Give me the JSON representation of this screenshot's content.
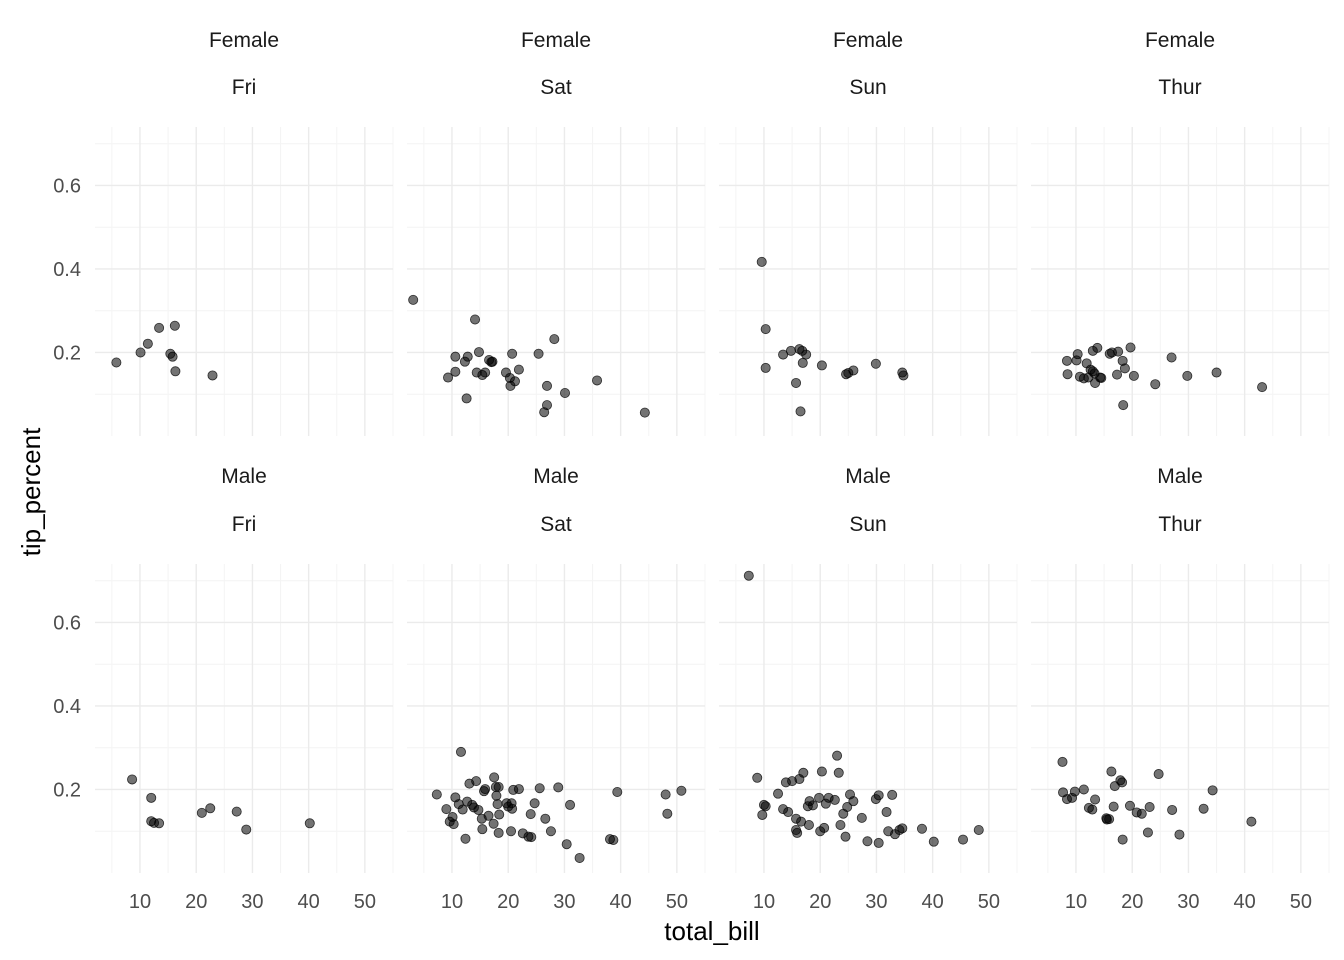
{
  "chart_data": {
    "type": "scatter",
    "xlabel": "total_bill",
    "ylabel": "tip_percent",
    "xlim": [
      2,
      55
    ],
    "ylim": [
      0.0,
      0.74
    ],
    "x_ticks": [
      10,
      20,
      30,
      40,
      50
    ],
    "y_ticks": [
      0.2,
      0.4,
      0.6
    ],
    "x_tick_labels": [
      "10",
      "20",
      "30",
      "40",
      "50"
    ],
    "y_tick_labels": [
      "0.2",
      "0.4",
      "0.6"
    ],
    "grid": true,
    "facets": [
      {
        "sex": "Female",
        "day": "Fri",
        "points": [
          [
            5.8,
            0.176
          ],
          [
            10.1,
            0.2
          ],
          [
            11.4,
            0.221
          ],
          [
            13.4,
            0.259
          ],
          [
            15.4,
            0.197
          ],
          [
            15.8,
            0.19
          ],
          [
            16.3,
            0.155
          ],
          [
            16.2,
            0.264
          ],
          [
            22.9,
            0.145
          ]
        ]
      },
      {
        "sex": "Female",
        "day": "Sat",
        "points": [
          [
            3.1,
            0.326
          ],
          [
            9.3,
            0.14
          ],
          [
            10.6,
            0.19
          ],
          [
            10.6,
            0.154
          ],
          [
            12.3,
            0.178
          ],
          [
            12.6,
            0.09
          ],
          [
            12.8,
            0.19
          ],
          [
            14.1,
            0.279
          ],
          [
            14.4,
            0.152
          ],
          [
            14.8,
            0.201
          ],
          [
            15.4,
            0.146
          ],
          [
            15.9,
            0.152
          ],
          [
            16.6,
            0.182
          ],
          [
            17.0,
            0.177
          ],
          [
            17.2,
            0.178
          ],
          [
            19.6,
            0.152
          ],
          [
            20.3,
            0.139
          ],
          [
            20.4,
            0.12
          ],
          [
            20.7,
            0.197
          ],
          [
            21.2,
            0.131
          ],
          [
            21.9,
            0.159
          ],
          [
            25.4,
            0.197
          ],
          [
            26.4,
            0.057
          ],
          [
            26.9,
            0.12
          ],
          [
            26.9,
            0.074
          ],
          [
            28.2,
            0.232
          ],
          [
            30.1,
            0.103
          ],
          [
            35.8,
            0.133
          ],
          [
            44.3,
            0.056
          ]
        ]
      },
      {
        "sex": "Female",
        "day": "Sun",
        "points": [
          [
            9.6,
            0.417
          ],
          [
            10.3,
            0.163
          ],
          [
            10.3,
            0.256
          ],
          [
            13.4,
            0.195
          ],
          [
            14.8,
            0.204
          ],
          [
            15.7,
            0.127
          ],
          [
            16.3,
            0.208
          ],
          [
            16.5,
            0.059
          ],
          [
            16.8,
            0.204
          ],
          [
            16.9,
            0.175
          ],
          [
            17.5,
            0.195
          ],
          [
            20.3,
            0.169
          ],
          [
            24.6,
            0.148
          ],
          [
            25.0,
            0.151
          ],
          [
            25.9,
            0.157
          ],
          [
            29.9,
            0.173
          ],
          [
            34.6,
            0.152
          ],
          [
            34.8,
            0.145
          ]
        ]
      },
      {
        "sex": "Female",
        "day": "Thur",
        "points": [
          [
            8.4,
            0.18
          ],
          [
            8.5,
            0.148
          ],
          [
            10.1,
            0.181
          ],
          [
            10.3,
            0.196
          ],
          [
            10.7,
            0.142
          ],
          [
            11.4,
            0.138
          ],
          [
            11.9,
            0.174
          ],
          [
            12.2,
            0.14
          ],
          [
            12.6,
            0.159
          ],
          [
            13.0,
            0.155
          ],
          [
            13.0,
            0.204
          ],
          [
            13.3,
            0.15
          ],
          [
            13.4,
            0.127
          ],
          [
            13.8,
            0.211
          ],
          [
            14.3,
            0.14
          ],
          [
            14.5,
            0.139
          ],
          [
            16.0,
            0.197
          ],
          [
            16.4,
            0.2
          ],
          [
            17.3,
            0.147
          ],
          [
            17.5,
            0.202
          ],
          [
            18.3,
            0.18
          ],
          [
            18.4,
            0.074
          ],
          [
            18.7,
            0.162
          ],
          [
            19.7,
            0.212
          ],
          [
            20.3,
            0.144
          ],
          [
            24.1,
            0.124
          ],
          [
            27.0,
            0.188
          ],
          [
            29.8,
            0.144
          ],
          [
            35.0,
            0.152
          ],
          [
            43.1,
            0.117
          ]
        ]
      },
      {
        "sex": "Male",
        "day": "Fri",
        "points": [
          [
            8.6,
            0.224
          ],
          [
            12.0,
            0.18
          ],
          [
            12.0,
            0.124
          ],
          [
            12.5,
            0.12
          ],
          [
            13.4,
            0.119
          ],
          [
            21.0,
            0.144
          ],
          [
            22.5,
            0.155
          ],
          [
            27.2,
            0.147
          ],
          [
            28.9,
            0.104
          ],
          [
            40.2,
            0.119
          ]
        ]
      },
      {
        "sex": "Male",
        "day": "Sat",
        "points": [
          [
            7.3,
            0.188
          ],
          [
            9.0,
            0.153
          ],
          [
            9.6,
            0.123
          ],
          [
            10.1,
            0.134
          ],
          [
            10.3,
            0.117
          ],
          [
            10.6,
            0.181
          ],
          [
            11.2,
            0.165
          ],
          [
            11.6,
            0.29
          ],
          [
            11.9,
            0.152
          ],
          [
            12.7,
            0.171
          ],
          [
            12.4,
            0.082
          ],
          [
            13.1,
            0.214
          ],
          [
            13.6,
            0.163
          ],
          [
            13.9,
            0.157
          ],
          [
            14.3,
            0.22
          ],
          [
            14.7,
            0.151
          ],
          [
            15.3,
            0.13
          ],
          [
            15.4,
            0.105
          ],
          [
            15.7,
            0.196
          ],
          [
            15.9,
            0.201
          ],
          [
            16.5,
            0.137
          ],
          [
            17.4,
            0.118
          ],
          [
            17.5,
            0.229
          ],
          [
            17.8,
            0.206
          ],
          [
            17.9,
            0.185
          ],
          [
            18.1,
            0.165
          ],
          [
            18.3,
            0.096
          ],
          [
            18.4,
            0.14
          ],
          [
            18.3,
            0.206
          ],
          [
            19.7,
            0.167
          ],
          [
            20.0,
            0.159
          ],
          [
            20.5,
            0.1
          ],
          [
            20.6,
            0.167
          ],
          [
            20.7,
            0.154
          ],
          [
            20.9,
            0.199
          ],
          [
            21.9,
            0.201
          ],
          [
            22.6,
            0.095
          ],
          [
            23.6,
            0.087
          ],
          [
            24.0,
            0.141
          ],
          [
            24.1,
            0.086
          ],
          [
            24.7,
            0.167
          ],
          [
            25.6,
            0.203
          ],
          [
            26.6,
            0.13
          ],
          [
            27.6,
            0.1
          ],
          [
            28.9,
            0.205
          ],
          [
            30.4,
            0.069
          ],
          [
            31.0,
            0.163
          ],
          [
            32.7,
            0.036
          ],
          [
            38.1,
            0.081
          ],
          [
            38.7,
            0.079
          ],
          [
            39.4,
            0.194
          ],
          [
            48.0,
            0.188
          ],
          [
            48.3,
            0.142
          ],
          [
            50.8,
            0.197
          ]
        ]
      },
      {
        "sex": "Male",
        "day": "Sun",
        "points": [
          [
            7.3,
            0.712
          ],
          [
            8.8,
            0.228
          ],
          [
            9.7,
            0.139
          ],
          [
            10.0,
            0.163
          ],
          [
            10.3,
            0.16
          ],
          [
            12.5,
            0.19
          ],
          [
            13.4,
            0.153
          ],
          [
            13.9,
            0.217
          ],
          [
            14.3,
            0.146
          ],
          [
            15.0,
            0.22
          ],
          [
            15.7,
            0.13
          ],
          [
            15.7,
            0.103
          ],
          [
            15.9,
            0.096
          ],
          [
            16.3,
            0.225
          ],
          [
            16.6,
            0.123
          ],
          [
            17.0,
            0.24
          ],
          [
            17.8,
            0.16
          ],
          [
            18.0,
            0.115
          ],
          [
            18.1,
            0.172
          ],
          [
            18.7,
            0.162
          ],
          [
            19.8,
            0.18
          ],
          [
            20.0,
            0.1
          ],
          [
            20.3,
            0.243
          ],
          [
            20.7,
            0.108
          ],
          [
            21.0,
            0.166
          ],
          [
            21.5,
            0.18
          ],
          [
            22.6,
            0.175
          ],
          [
            23.0,
            0.281
          ],
          [
            23.3,
            0.24
          ],
          [
            23.6,
            0.115
          ],
          [
            24.1,
            0.142
          ],
          [
            24.5,
            0.087
          ],
          [
            24.8,
            0.158
          ],
          [
            25.3,
            0.188
          ],
          [
            25.9,
            0.172
          ],
          [
            27.4,
            0.132
          ],
          [
            28.4,
            0.076
          ],
          [
            29.9,
            0.177
          ],
          [
            30.4,
            0.186
          ],
          [
            30.4,
            0.072
          ],
          [
            31.8,
            0.146
          ],
          [
            32.1,
            0.1
          ],
          [
            32.8,
            0.187
          ],
          [
            33.3,
            0.093
          ],
          [
            34.1,
            0.103
          ],
          [
            34.6,
            0.107
          ],
          [
            38.1,
            0.106
          ],
          [
            40.2,
            0.075
          ],
          [
            45.4,
            0.08
          ],
          [
            48.2,
            0.103
          ]
        ]
      },
      {
        "sex": "Male",
        "day": "Thur",
        "points": [
          [
            7.6,
            0.266
          ],
          [
            7.7,
            0.193
          ],
          [
            8.4,
            0.177
          ],
          [
            9.3,
            0.18
          ],
          [
            9.8,
            0.195
          ],
          [
            11.4,
            0.2
          ],
          [
            12.3,
            0.156
          ],
          [
            12.9,
            0.152
          ],
          [
            13.4,
            0.176
          ],
          [
            15.4,
            0.131
          ],
          [
            15.5,
            0.128
          ],
          [
            15.9,
            0.129
          ],
          [
            16.3,
            0.243
          ],
          [
            16.7,
            0.159
          ],
          [
            16.9,
            0.208
          ],
          [
            17.9,
            0.222
          ],
          [
            18.2,
            0.217
          ],
          [
            18.3,
            0.08
          ],
          [
            19.6,
            0.161
          ],
          [
            20.8,
            0.145
          ],
          [
            21.7,
            0.142
          ],
          [
            22.8,
            0.097
          ],
          [
            23.1,
            0.158
          ],
          [
            24.7,
            0.237
          ],
          [
            27.1,
            0.151
          ],
          [
            28.4,
            0.092
          ],
          [
            32.7,
            0.154
          ],
          [
            34.3,
            0.198
          ],
          [
            41.2,
            0.123
          ]
        ]
      }
    ]
  }
}
